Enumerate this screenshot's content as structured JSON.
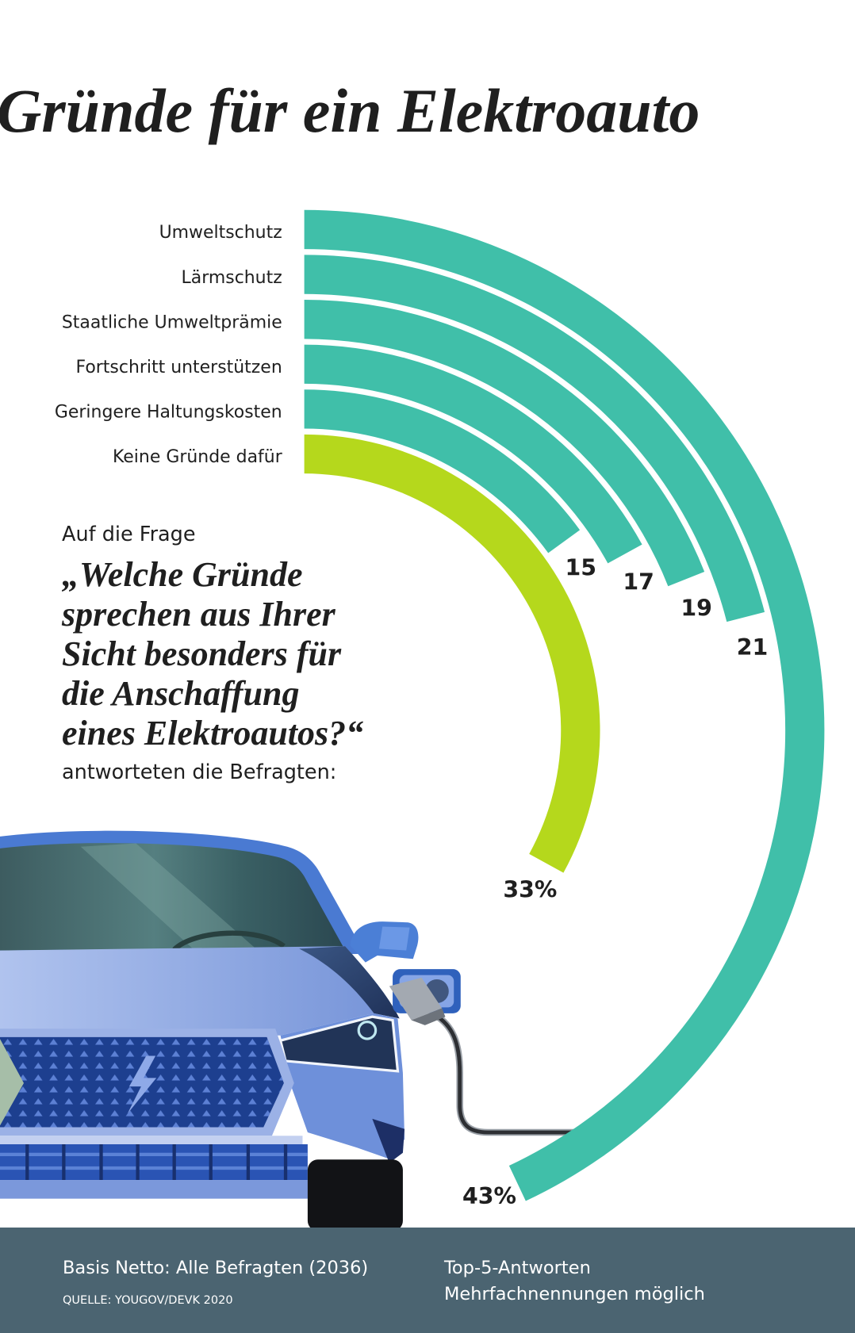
{
  "chart_data": {
    "type": "bar",
    "style": "radial",
    "title": "Gründe für ein Elektroauto",
    "categories": [
      "Umweltschutz",
      "Lärmschutz",
      "Staatliche Umweltprämie",
      "Fortschritt unterstützen",
      "Geringere Haltungskosten",
      "Keine Gründe dafür"
    ],
    "values": [
      43,
      21,
      19,
      17,
      15,
      33
    ],
    "value_labels": [
      "43%",
      "21",
      "19",
      "17",
      "15",
      "33%"
    ],
    "colors": [
      "#40bfa9",
      "#40bfa9",
      "#40bfa9",
      "#40bfa9",
      "#40bfa9",
      "#b5d81c"
    ]
  },
  "question": {
    "intro": "Auf die Frage",
    "lines": [
      "„Welche Gründe",
      "sprechen aus Ihrer",
      "Sicht besonders für",
      "die Anschaffung",
      "eines Elektroautos?“"
    ],
    "outro": "antworteten die Befragten:"
  },
  "footer": {
    "base": "Basis Netto: Alle Befragten (2036)",
    "source": "QUELLE: YOUGOV/DEVK 2020",
    "note_lines": [
      "Top-5-Antworten",
      "Mehrfachnennungen möglich"
    ]
  },
  "icons": [
    "electric-car-icon",
    "charging-plug-icon",
    "lightning-bolt-icon"
  ],
  "theme": {
    "footer_background": "#4b6471",
    "text": "#1f1f1f"
  }
}
